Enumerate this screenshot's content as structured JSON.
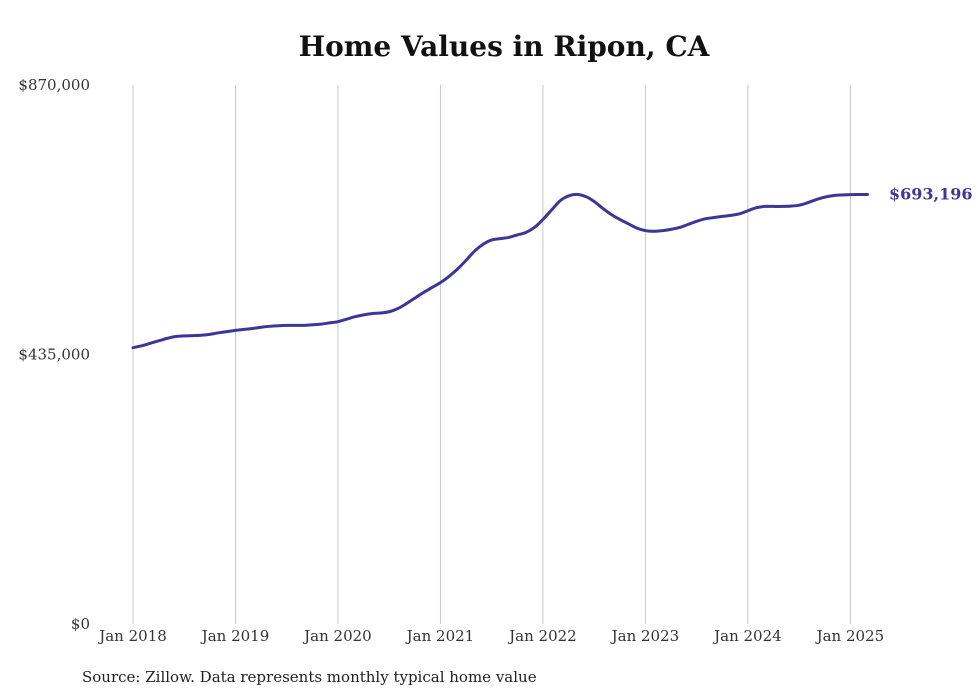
{
  "chart_data": {
    "type": "line",
    "title": "Home Values in Ripon, CA",
    "source": "Source: Zillow. Data represents monthly typical home value",
    "ylim": [
      0,
      870000
    ],
    "ytick_labels": [
      {
        "value": 0,
        "label": "$0"
      },
      {
        "value": 435000,
        "label": "$435,000"
      },
      {
        "value": 870000,
        "label": "$870,000"
      }
    ],
    "xtick_labels": [
      {
        "value": "2018-01",
        "label": "Jan 2018"
      },
      {
        "value": "2019-01",
        "label": "Jan 2019"
      },
      {
        "value": "2020-01",
        "label": "Jan 2020"
      },
      {
        "value": "2021-01",
        "label": "Jan 2021"
      },
      {
        "value": "2022-01",
        "label": "Jan 2022"
      },
      {
        "value": "2023-01",
        "label": "Jan 2023"
      },
      {
        "value": "2024-01",
        "label": "Jan 2024"
      },
      {
        "value": "2025-01",
        "label": "Jan 2025"
      }
    ],
    "grid": {
      "vertical": true,
      "horizontal": false
    },
    "end_label": "$693,196",
    "line_color": "#3b3796",
    "series": [
      {
        "x": [
          "2018-01",
          "2018-02",
          "2018-03",
          "2018-04",
          "2018-05",
          "2018-06",
          "2018-07",
          "2018-08",
          "2018-09",
          "2018-10",
          "2018-11",
          "2018-12",
          "2019-01",
          "2019-02",
          "2019-03",
          "2019-04",
          "2019-05",
          "2019-06",
          "2019-07",
          "2019-08",
          "2019-09",
          "2019-10",
          "2019-11",
          "2019-12",
          "2020-01",
          "2020-02",
          "2020-03",
          "2020-04",
          "2020-05",
          "2020-06",
          "2020-07",
          "2020-08",
          "2020-09",
          "2020-10",
          "2020-11",
          "2020-12",
          "2021-01",
          "2021-02",
          "2021-03",
          "2021-04",
          "2021-05",
          "2021-06",
          "2021-07",
          "2021-08",
          "2021-09",
          "2021-10",
          "2021-11",
          "2021-12",
          "2022-01",
          "2022-02",
          "2022-03",
          "2022-04",
          "2022-05",
          "2022-06",
          "2022-07",
          "2022-08",
          "2022-09",
          "2022-10",
          "2022-11",
          "2022-12",
          "2023-01",
          "2023-02",
          "2023-03",
          "2023-04",
          "2023-05",
          "2023-06",
          "2023-07",
          "2023-08",
          "2023-09",
          "2023-10",
          "2023-11",
          "2023-12",
          "2024-01",
          "2024-02",
          "2024-03",
          "2024-04",
          "2024-05",
          "2024-06",
          "2024-07",
          "2024-08",
          "2024-09",
          "2024-10",
          "2024-11",
          "2024-12",
          "2025-01",
          "2025-02",
          "2025-03"
        ],
        "values": [
          446000,
          449000,
          453000,
          457000,
          461000,
          464000,
          465000,
          465500,
          466000,
          467500,
          470000,
          472000,
          474000,
          475500,
          477000,
          479000,
          480500,
          481500,
          482000,
          482000,
          482000,
          483000,
          484000,
          486000,
          488000,
          492000,
          496000,
          499000,
          501000,
          502000,
          504000,
          509000,
          517000,
          526000,
          535000,
          543000,
          551000,
          561000,
          573000,
          587000,
          602000,
          613000,
          620000,
          622000,
          624000,
          628000,
          632000,
          640000,
          653000,
          668000,
          683000,
          691000,
          693500,
          690000,
          682000,
          671000,
          661000,
          653000,
          646000,
          639000,
          635000,
          634000,
          635000,
          637000,
          640000,
          645000,
          650000,
          654000,
          656000,
          658000,
          659500,
          662000,
          667000,
          672000,
          674000,
          674000,
          674000,
          674500,
          676000,
          680000,
          685000,
          689000,
          691500,
          692500,
          693000,
          693196,
          693196
        ]
      }
    ]
  }
}
